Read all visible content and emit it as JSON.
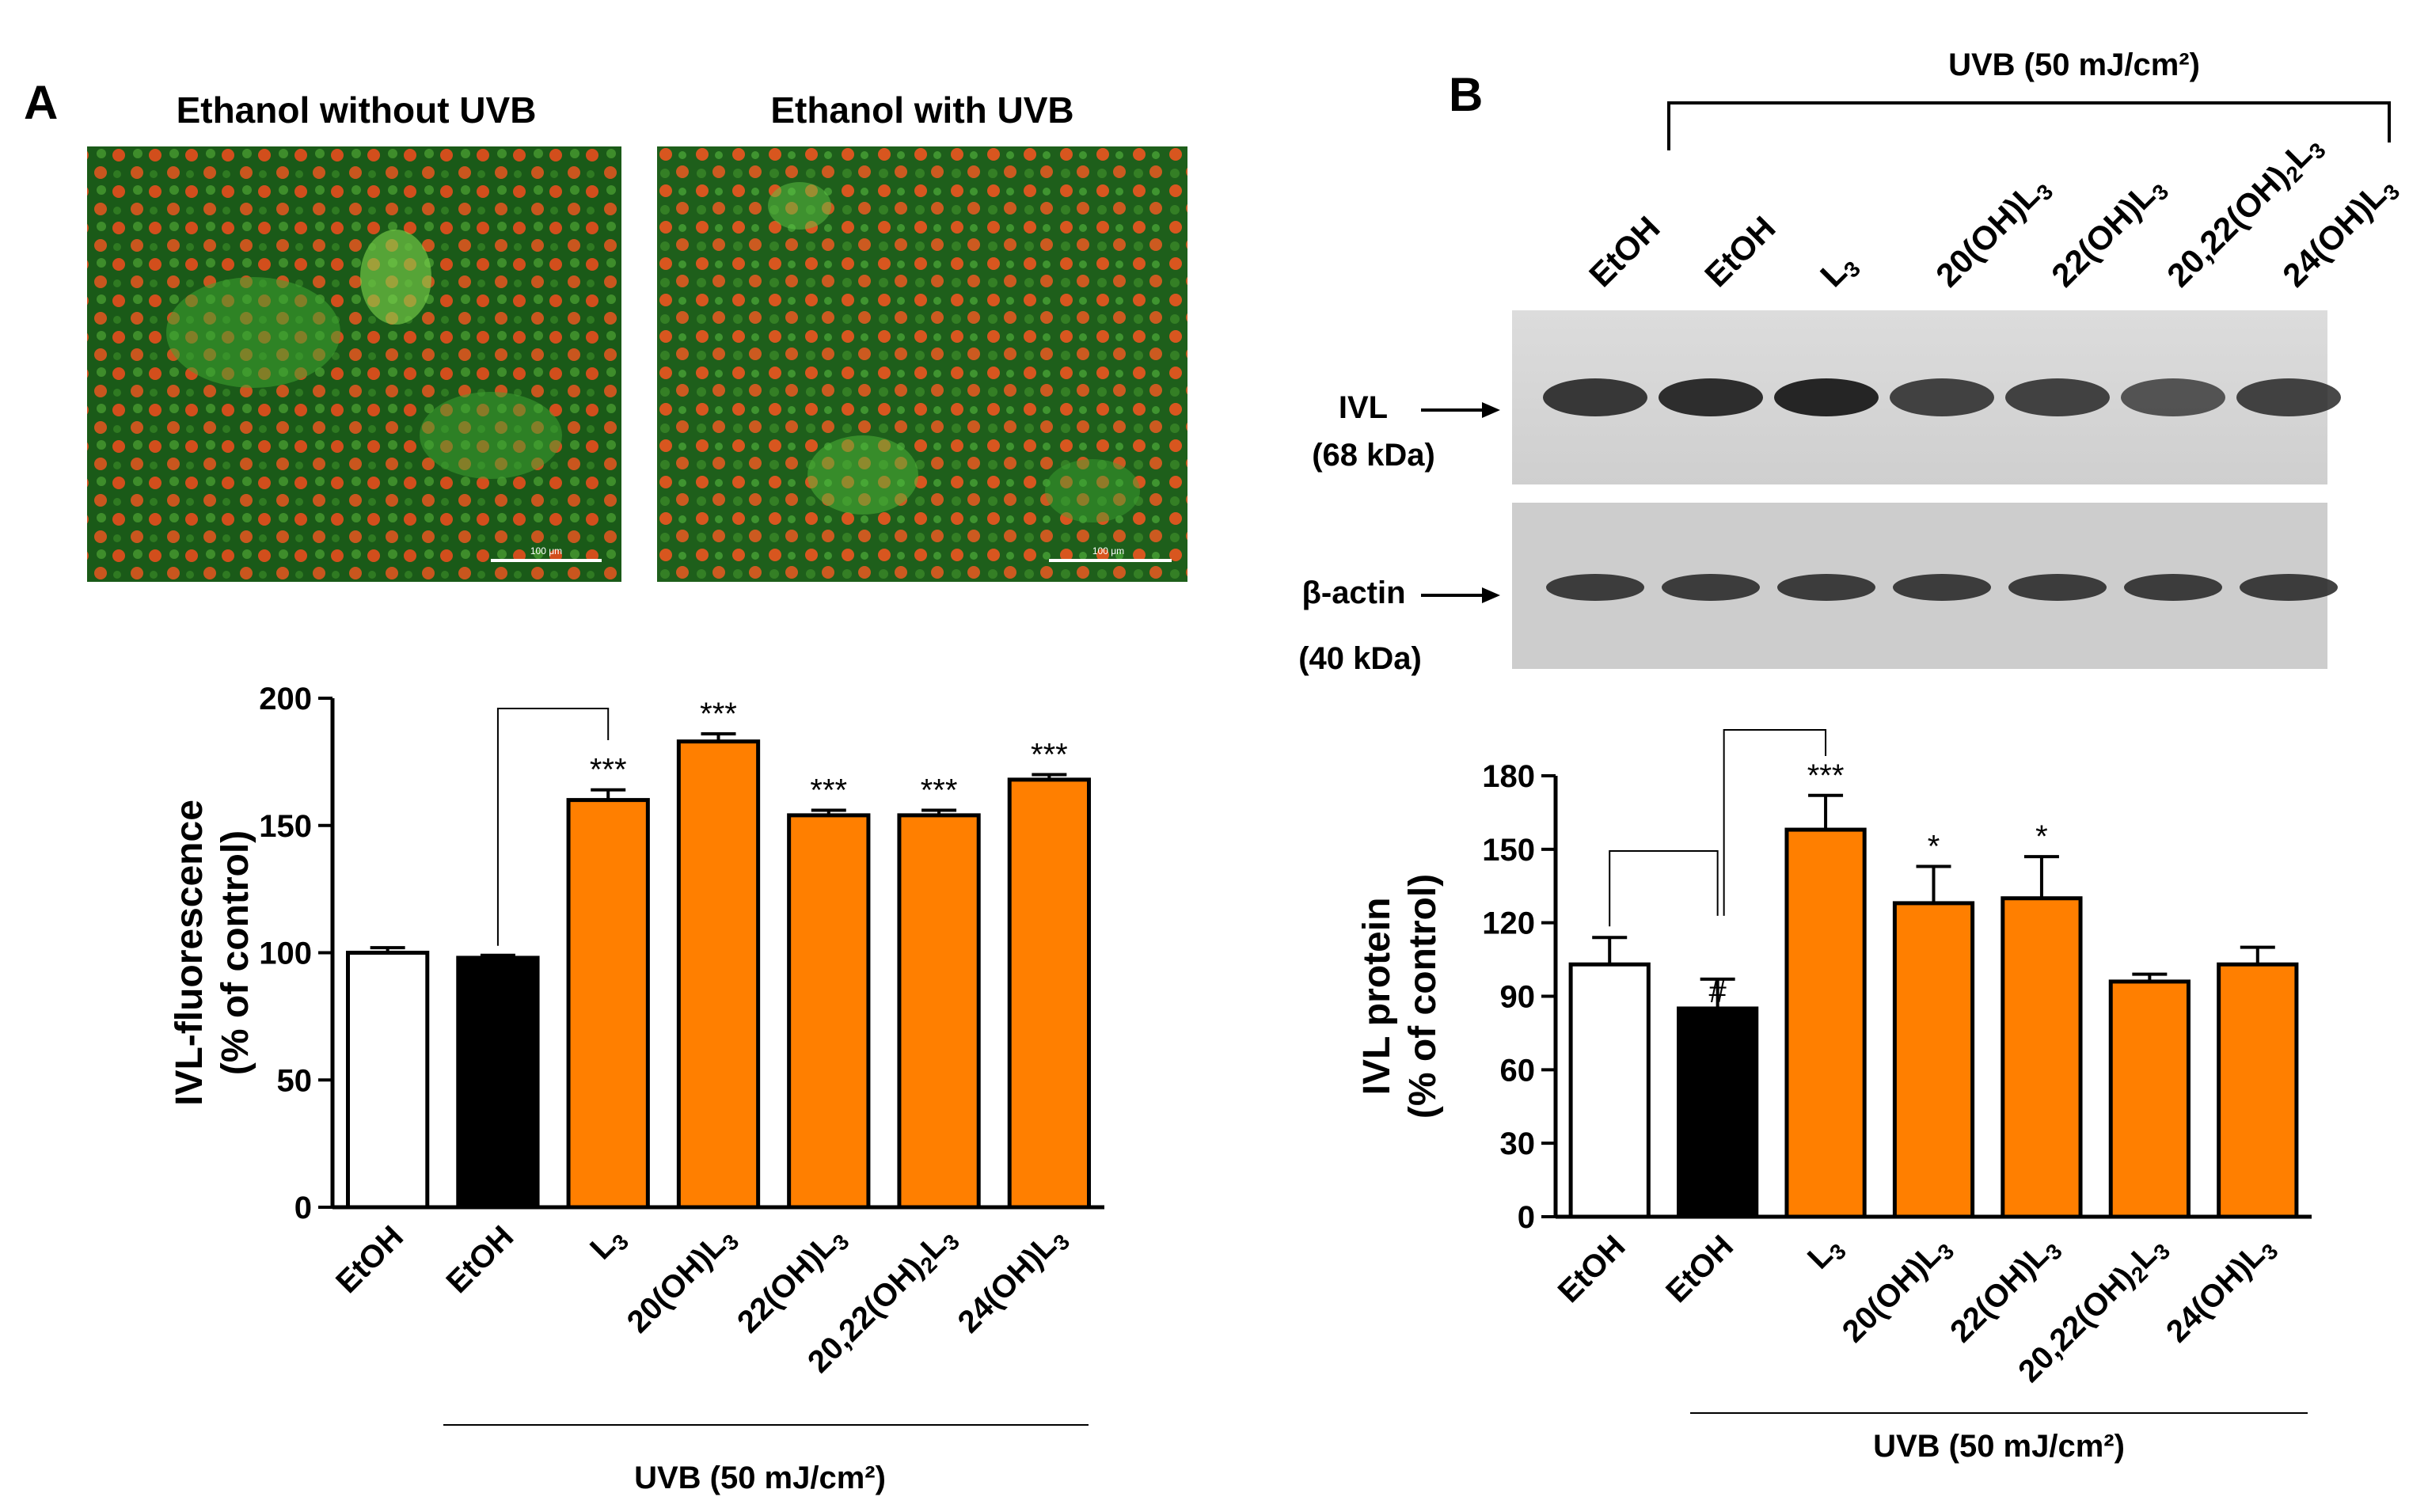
{
  "panel_a": {
    "letter": "A",
    "micrograph_left_title": "Ethanol without UVB",
    "micrograph_right_title": "Ethanol with UVB",
    "scale_bar_text": "100 μm",
    "uvb_label": "UVB (50 mJ/cm²)"
  },
  "panel_b": {
    "letter": "B",
    "uvb_header": "UVB (50 mJ/cm²)",
    "blot_lanes": [
      "EtOH",
      "EtOH",
      "L3",
      "20(OH)L3",
      "22(OH)L3",
      "20,22(OH)2L3",
      "24(OH)L3"
    ],
    "band_ivl_label": "IVL",
    "band_ivl_kda": "(68 kDa)",
    "band_actin_label": "β-actin",
    "band_actin_kda": "(40 kDa)",
    "uvb_label": "UVB (50 mJ/cm²)"
  },
  "colors": {
    "orange": "#ff7f00",
    "black": "#000000",
    "white": "#ffffff",
    "micrograph_green": "#1f6b1a",
    "nucleus_red": "#d9541c"
  },
  "chart_data": [
    {
      "type": "bar",
      "panel": "A",
      "categories": [
        "EtOH",
        "EtOH",
        "L3",
        "20(OH)L3",
        "22(OH)L3",
        "20,22(OH)2L3",
        "24(OH)L3"
      ],
      "values": [
        100,
        98,
        160,
        183,
        154,
        154,
        168
      ],
      "errors": [
        2,
        1,
        4,
        3,
        2,
        2,
        2
      ],
      "bar_colors": [
        "white",
        "black",
        "orange",
        "orange",
        "orange",
        "orange",
        "orange"
      ],
      "annotations": [
        "",
        "",
        "***",
        "***",
        "***",
        "***",
        "***"
      ],
      "ylabel": "IVL-fluorescence\n(% of control)",
      "yticks": [
        0,
        50,
        100,
        150,
        200
      ],
      "ylim": [
        0,
        200
      ],
      "comparison_bracket": "EtOH vs L3"
    },
    {
      "type": "bar",
      "panel": "B",
      "categories": [
        "EtOH",
        "EtOH",
        "L3",
        "20(OH)L3",
        "22(OH)L3",
        "20,22(OH)2L3",
        "24(OH)L3"
      ],
      "values": [
        103,
        85,
        158,
        128,
        130,
        96,
        103
      ],
      "errors": [
        11,
        12,
        14,
        15,
        17,
        3,
        7
      ],
      "bar_colors": [
        "white",
        "black",
        "orange",
        "orange",
        "orange",
        "orange",
        "orange"
      ],
      "annotations": [
        "",
        "#",
        "***",
        "*",
        "*",
        "",
        ""
      ],
      "ylabel": "IVL protein\n(% of control)",
      "yticks": [
        0,
        30,
        60,
        90,
        120,
        150,
        180
      ],
      "ylim": [
        0,
        180
      ],
      "comparison_brackets": [
        "EtOH vs EtOH",
        "EtOH vs L3"
      ]
    }
  ]
}
